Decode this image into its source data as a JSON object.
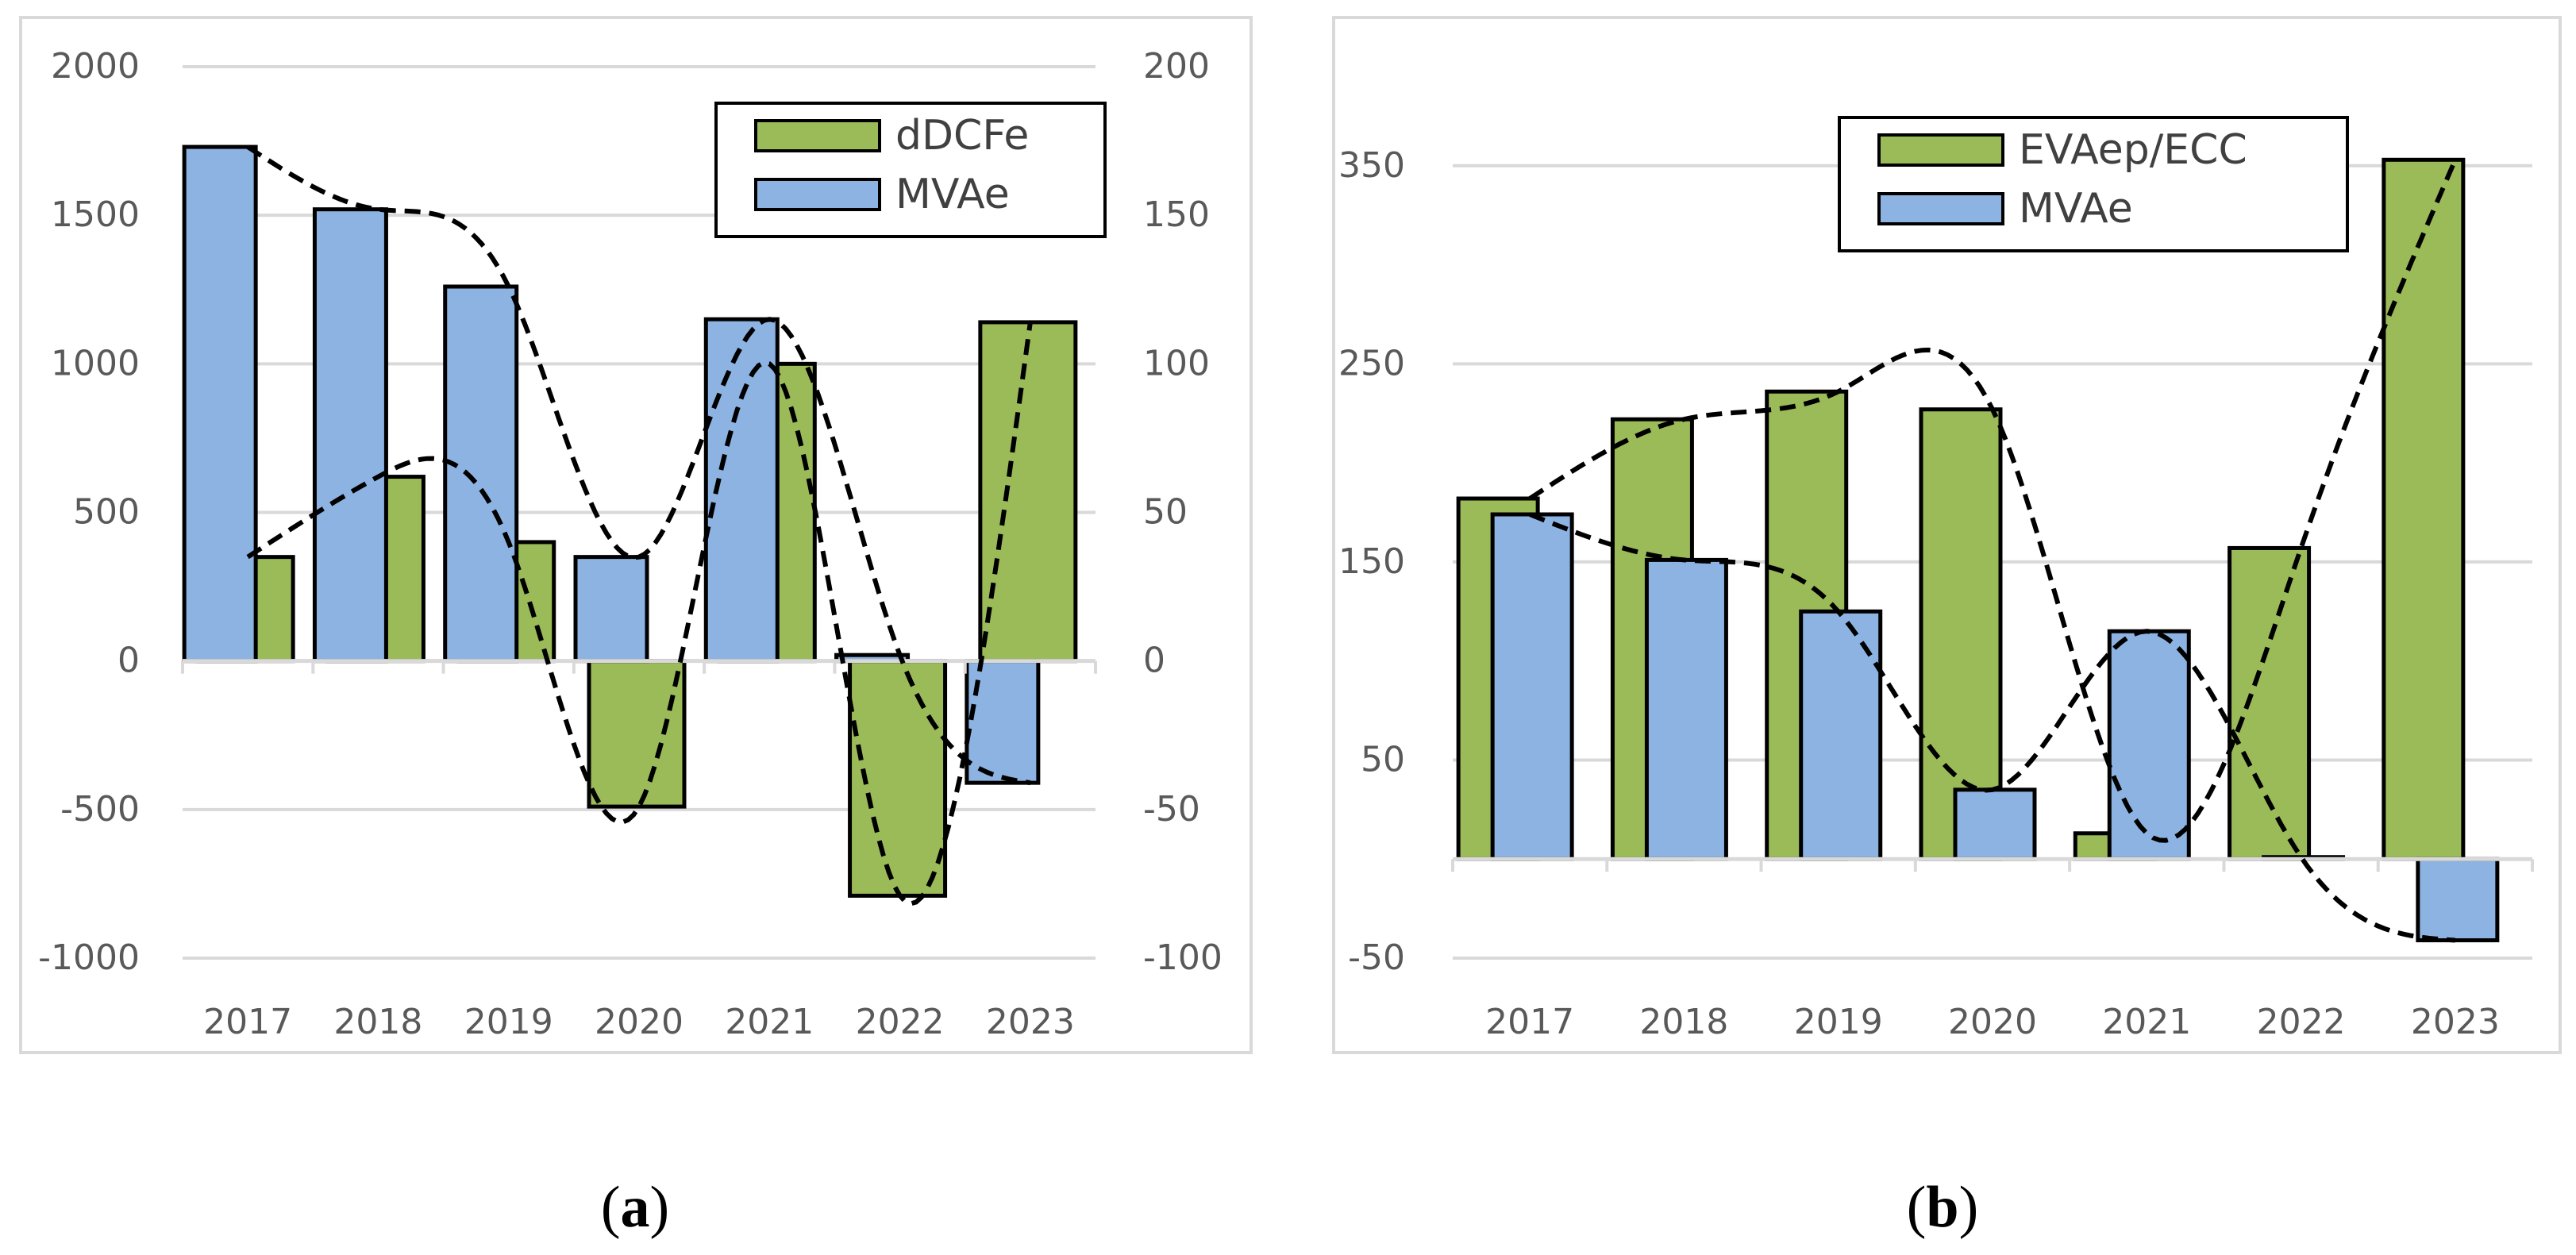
{
  "colors": {
    "green": "#9bbb59",
    "blue": "#8db3e2",
    "grid": "#d9d9d9",
    "axis_text": "#595959",
    "frame": "#d9d9d9",
    "trend": "#000000"
  },
  "chart_data": [
    {
      "id": "a",
      "type": "bar",
      "caption": "a",
      "categories": [
        "2017",
        "2018",
        "2019",
        "2020",
        "2021",
        "2022",
        "2023"
      ],
      "primary_axis": {
        "min": -1000,
        "max": 2000,
        "ticks": [
          2000,
          1500,
          1000,
          500,
          0,
          -500,
          -1000
        ],
        "tick_labels": [
          "2000",
          "1500",
          "1000",
          "500",
          "0",
          "-500",
          "-1000"
        ]
      },
      "secondary_axis": {
        "min": -100,
        "max": 200,
        "ticks": [
          200,
          150,
          100,
          50,
          0,
          -50,
          -100
        ],
        "tick_labels": [
          "200",
          "150",
          "100",
          "50",
          "0",
          "-50",
          "-100"
        ]
      },
      "series": [
        {
          "name": "dDCFe",
          "color": "green",
          "axis": "primary",
          "values": [
            350,
            620,
            400,
            -490,
            1000,
            -790,
            1140
          ]
        },
        {
          "name": "MVAe",
          "color": "blue",
          "axis": "secondary",
          "values": [
            173,
            152,
            126,
            35,
            115,
            2,
            -41
          ]
        }
      ],
      "trendlines": [
        {
          "series": "dDCFe",
          "style": "dashed",
          "kind": "polynomial"
        },
        {
          "series": "MVAe",
          "style": "dashed",
          "kind": "polynomial"
        }
      ],
      "legend": "top-right"
    },
    {
      "id": "b",
      "type": "bar",
      "caption": "b",
      "categories": [
        "2017",
        "2018",
        "2019",
        "2020",
        "2021",
        "2022",
        "2023"
      ],
      "primary_axis": {
        "min": -50,
        "max": 400,
        "ticks": [
          350,
          250,
          150,
          50,
          -50
        ],
        "tick_labels": [
          "350",
          "250",
          "150",
          "50",
          "-50"
        ]
      },
      "series": [
        {
          "name": "EVAep/ECC",
          "color": "green",
          "values": [
            182,
            222,
            236,
            227,
            13,
            157,
            353
          ]
        },
        {
          "name": "MVAe",
          "color": "blue",
          "values": [
            174,
            151,
            125,
            35,
            115,
            1,
            -41
          ]
        }
      ],
      "trendlines": [
        {
          "series": "EVAep/ECC",
          "style": "dashed",
          "kind": "polynomial"
        },
        {
          "series": "MVAe",
          "style": "dashed",
          "kind": "polynomial"
        }
      ],
      "legend": "top-center"
    }
  ]
}
